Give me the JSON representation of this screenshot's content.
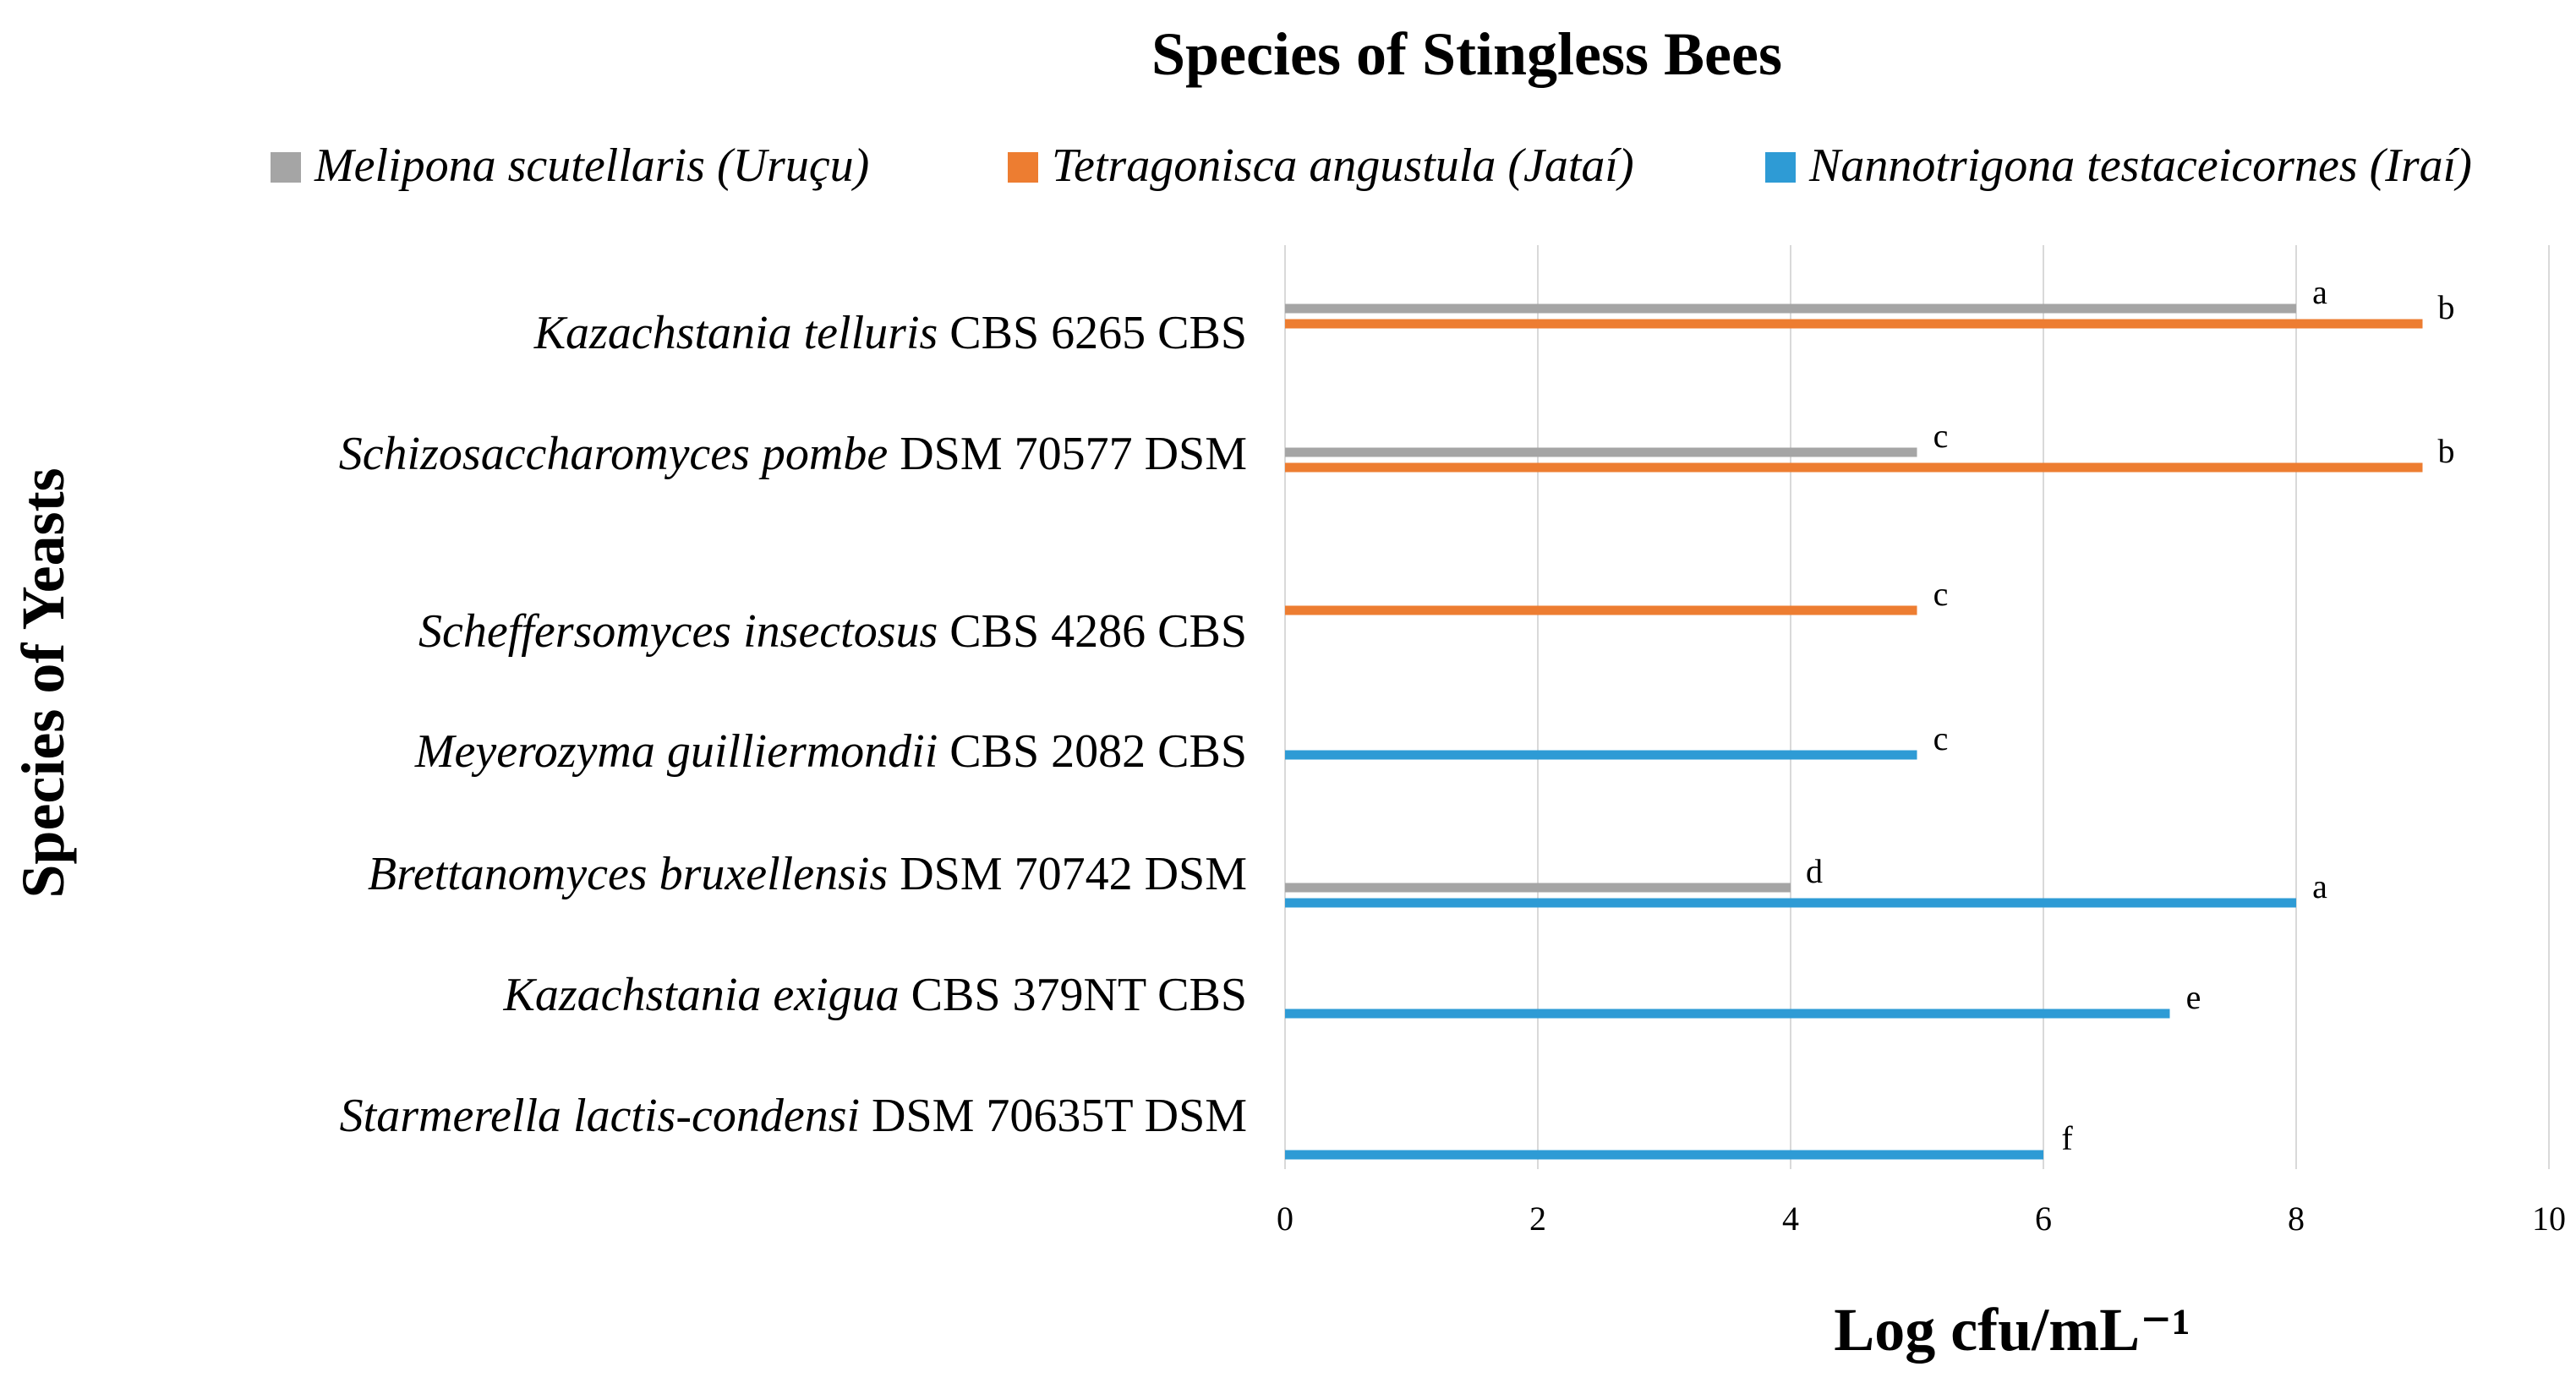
{
  "chart_data": {
    "type": "bar",
    "orientation": "horizontal",
    "title": "Species of Stingless Bees",
    "xlabel": "Log cfu/mL⁻¹",
    "ylabel": "Species of Yeasts",
    "xlim": [
      0,
      10
    ],
    "xticks": [
      "0",
      "2",
      "4",
      "6",
      "8",
      "10"
    ],
    "grid": true,
    "legend_position": "top",
    "categories": [
      {
        "name": "Kazachstania telluris",
        "suffix": " CBS 6265 CBS"
      },
      {
        "name": "Schizosaccharomyces pombe",
        "suffix": " DSM 70577 DSM"
      },
      {
        "name": "Scheffersomyces insectosus",
        "suffix": " CBS 4286 CBS"
      },
      {
        "name": "Meyerozyma guilliermondii",
        "suffix": " CBS 2082 CBS"
      },
      {
        "name": "Brettanomyces bruxellensis",
        "suffix": " DSM 70742 DSM"
      },
      {
        "name": "Kazachstania exigua",
        "suffix": " CBS 379NT CBS"
      },
      {
        "name": "Starmerella lactis-condensi",
        "suffix": " DSM 70635T DSM"
      }
    ],
    "series": [
      {
        "name": "Melipona scutellaris (Uruçu)",
        "color": "#a5a5a5",
        "values": [
          8,
          5,
          null,
          null,
          4,
          null,
          null
        ],
        "labels": [
          "a",
          "c",
          null,
          null,
          "d",
          null,
          null
        ]
      },
      {
        "name": "Tetragonisca angustula (Jataí)",
        "color": "#ed7d31",
        "values": [
          9,
          9,
          5,
          null,
          null,
          null,
          null
        ],
        "labels": [
          "b",
          "b",
          "c",
          null,
          null,
          null,
          null
        ]
      },
      {
        "name": "Nannotrigona testaceicornes (Iraí)",
        "color": "#2e9bd5",
        "values": [
          null,
          null,
          null,
          5,
          8,
          7,
          6
        ],
        "labels": [
          null,
          null,
          null,
          "c",
          "a",
          "e",
          "f"
        ]
      }
    ]
  }
}
